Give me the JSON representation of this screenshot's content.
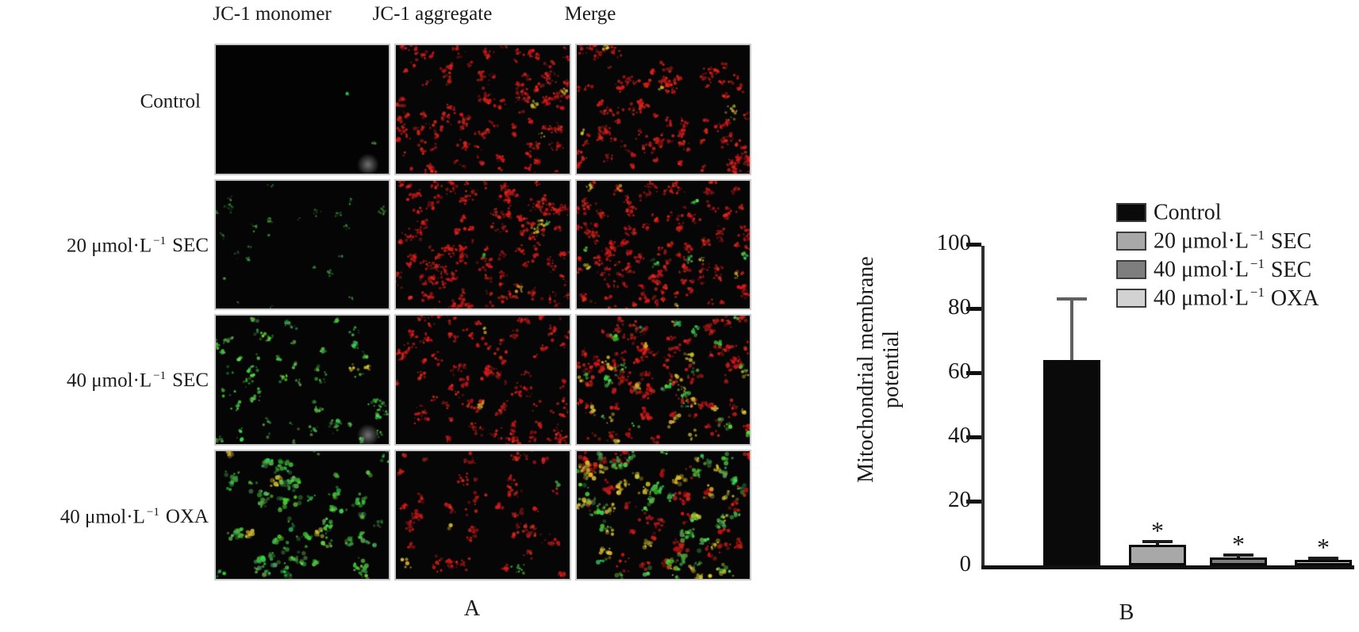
{
  "panel_a": {
    "label": "A",
    "column_headers": [
      "JC-1 monomer",
      "JC-1 aggregate",
      "Merge"
    ],
    "row_labels": [
      {
        "base": "Control",
        "sup": "",
        "agent": ""
      },
      {
        "base": "20 μmol·L",
        "sup": "−1",
        "agent": "SEC"
      },
      {
        "base": "40 μmol·L",
        "sup": "−1",
        "agent": "SEC"
      },
      {
        "base": "40 μmol·L",
        "sup": "−1",
        "agent": "OXA"
      }
    ],
    "micrograph_colors": {
      "red": "#b01e1e",
      "green": "#46a546",
      "yellow": "#c0a832",
      "background": "#050505"
    },
    "cells": [
      [
        {
          "seed": 11,
          "red": 0,
          "green": 2,
          "yellow": 0,
          "scale": 0.6,
          "alpha": 1.0,
          "bg": "#030303",
          "smudge": true
        },
        {
          "seed": 12,
          "red": 115,
          "green": 0,
          "yellow": 3,
          "scale": 1.0,
          "alpha": 1.0,
          "bg": "#060606",
          "smudge": false
        },
        {
          "seed": 13,
          "red": 105,
          "green": 0,
          "yellow": 4,
          "scale": 1.0,
          "alpha": 1.0,
          "bg": "#060606",
          "smudge": false
        }
      ],
      [
        {
          "seed": 21,
          "red": 0,
          "green": 24,
          "yellow": 0,
          "scale": 0.7,
          "alpha": 0.7,
          "bg": "#050505",
          "smudge": false
        },
        {
          "seed": 22,
          "red": 135,
          "green": 2,
          "yellow": 3,
          "scale": 1.0,
          "alpha": 1.0,
          "bg": "#060606",
          "smudge": false
        },
        {
          "seed": 23,
          "red": 120,
          "green": 5,
          "yellow": 6,
          "scale": 1.0,
          "alpha": 1.0,
          "bg": "#060606",
          "smudge": false
        }
      ],
      [
        {
          "seed": 31,
          "red": 0,
          "green": 55,
          "yellow": 2,
          "scale": 1.0,
          "alpha": 1.0,
          "bg": "#050505",
          "smudge": true
        },
        {
          "seed": 32,
          "red": 95,
          "green": 0,
          "yellow": 2,
          "scale": 1.0,
          "alpha": 1.0,
          "bg": "#060606",
          "smudge": false
        },
        {
          "seed": 33,
          "red": 85,
          "green": 20,
          "yellow": 18,
          "scale": 1.1,
          "alpha": 1.0,
          "bg": "#060606",
          "smudge": false
        }
      ],
      [
        {
          "seed": 41,
          "red": 0,
          "green": 58,
          "yellow": 4,
          "scale": 1.3,
          "alpha": 1.0,
          "bg": "#050505",
          "smudge": false
        },
        {
          "seed": 42,
          "red": 45,
          "green": 2,
          "yellow": 2,
          "scale": 1.1,
          "alpha": 1.0,
          "bg": "#060606",
          "smudge": false
        },
        {
          "seed": 43,
          "red": 38,
          "green": 40,
          "yellow": 26,
          "scale": 1.3,
          "alpha": 1.0,
          "bg": "#060606",
          "smudge": false
        }
      ]
    ]
  },
  "chart_data": {
    "type": "bar",
    "panel_label": "B",
    "title": "",
    "ylabel": "Mitochondrial membrane potential",
    "ylabel_lines": [
      "Mitochondrial membrane",
      "potential"
    ],
    "categories": [
      "Control",
      "20 μmol·L−1 SEC",
      "40 μmol·L−1 SEC",
      "40 μmol·L−1 OXA"
    ],
    "values": [
      64,
      6.5,
      2.5,
      1.8
    ],
    "errors": [
      19,
      1,
      0.6,
      0.5
    ],
    "significance": [
      "",
      "*",
      "*",
      "*"
    ],
    "bar_colors": [
      "#0a0a0a",
      "#a8a8a8",
      "#7e7e7e",
      "#d2d2d2"
    ],
    "ylim": [
      0,
      100
    ],
    "yticks": [
      0,
      20,
      40,
      60,
      80,
      100
    ],
    "grid": false,
    "legend_position": "top-right",
    "legend": [
      {
        "base": "Control",
        "sup": "",
        "agent": "",
        "color": "#0a0a0a"
      },
      {
        "base": "20 μmol·L",
        "sup": "−1",
        "agent": "SEC",
        "color": "#a8a8a8"
      },
      {
        "base": "40 μmol·L",
        "sup": "−1",
        "agent": "SEC",
        "color": "#7e7e7e"
      },
      {
        "base": "40 μmol·L",
        "sup": "−1",
        "agent": "OXA",
        "color": "#d2d2d2"
      }
    ]
  }
}
